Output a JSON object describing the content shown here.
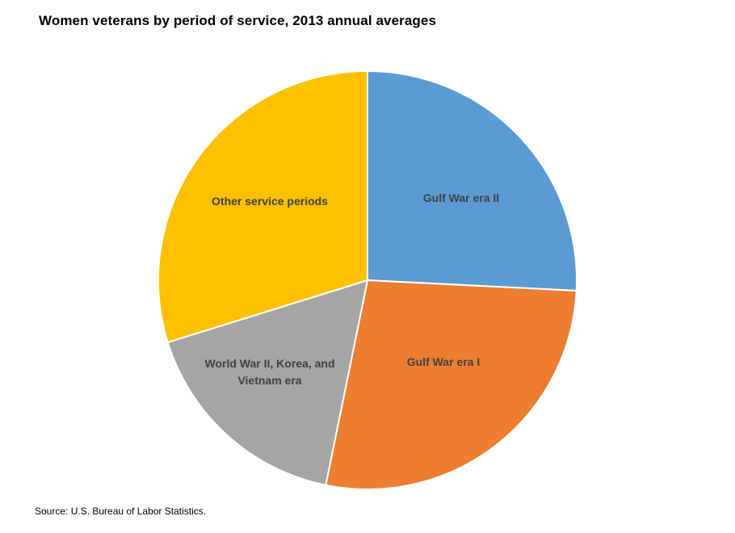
{
  "chart_data": {
    "type": "pie",
    "title": "Women veterans by period of service, 2013 annual averages",
    "slices": [
      {
        "label": "Gulf War era II",
        "value": 25.8,
        "color": "#5B9BD5"
      },
      {
        "label": "Gulf War era I",
        "value": 27.4,
        "color": "#ED7D31"
      },
      {
        "label": "World War II, Korea, and Vietnam era",
        "value": 17.0,
        "color": "#A5A5A5"
      },
      {
        "label": "Other service periods",
        "value": 29.8,
        "color": "#FFC000"
      }
    ],
    "start_angle": "12 o'clock",
    "direction": "clockwise",
    "legend": "none"
  },
  "source": "Source: U.S. Bureau of Labor Statistics."
}
